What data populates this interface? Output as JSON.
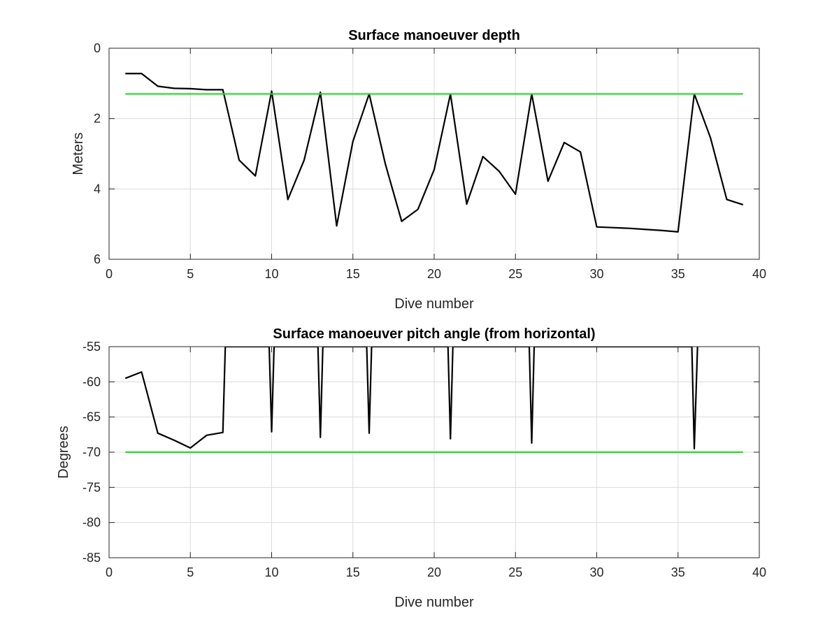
{
  "chart_data": [
    {
      "type": "line",
      "title": "Surface manoeuver depth",
      "xlabel": "Dive number",
      "ylabel": "Meters",
      "xlim": [
        0,
        40
      ],
      "ylim": [
        0,
        6
      ],
      "y_reversed": true,
      "grid": true,
      "xticks": [
        "0",
        "5",
        "10",
        "15",
        "20",
        "25",
        "30",
        "35",
        "40"
      ],
      "yticks": [
        "0",
        "2",
        "4",
        "6"
      ],
      "series": [
        {
          "color": "#000000",
          "x": [
            1,
            2,
            3,
            4,
            5,
            6,
            7,
            8,
            9,
            10,
            11,
            12,
            13,
            14,
            15,
            16,
            17,
            18,
            19,
            20,
            21,
            22,
            23,
            24,
            25,
            26,
            27,
            28,
            29,
            30,
            31,
            32,
            33,
            34,
            35,
            36,
            37,
            38,
            39
          ],
          "y": [
            0.72,
            0.72,
            1.08,
            1.14,
            1.15,
            1.18,
            1.18,
            3.18,
            3.63,
            1.22,
            4.3,
            3.18,
            1.25,
            5.05,
            2.65,
            1.3,
            3.3,
            4.92,
            4.58,
            3.45,
            1.3,
            4.43,
            3.08,
            3.5,
            4.15,
            1.3,
            3.78,
            2.68,
            2.95,
            5.08,
            5.1,
            5.12,
            5.15,
            5.18,
            5.22,
            1.3,
            2.55,
            4.3,
            4.45
          ]
        },
        {
          "color": "#22dd22",
          "x": [
            1,
            39
          ],
          "y": [
            1.3,
            1.3
          ]
        }
      ]
    },
    {
      "type": "line",
      "title": "Surface manoeuver pitch angle (from horizontal)",
      "xlabel": "Dive number",
      "ylabel": "Degrees",
      "xlim": [
        0,
        40
      ],
      "ylim": [
        -85,
        -55
      ],
      "grid": true,
      "xticks": [
        "0",
        "5",
        "10",
        "15",
        "20",
        "25",
        "30",
        "35",
        "40"
      ],
      "yticks": [
        "-55",
        "-60",
        "-65",
        "-70",
        "-75",
        "-80",
        "-85"
      ],
      "series": [
        {
          "color": "#000000",
          "x": [
            1,
            2,
            3,
            4,
            5,
            6,
            7,
            7.15,
            9.85,
            10,
            10.15,
            12.85,
            13,
            13.15,
            15.85,
            16,
            16.15,
            20.85,
            21,
            21.15,
            25.85,
            26,
            26.15,
            35.85,
            36,
            36.2
          ],
          "y": [
            -59.5,
            -58.6,
            -67.3,
            -68.3,
            -69.4,
            -67.6,
            -67.2,
            -55,
            -55,
            -67.1,
            -55,
            -55,
            -67.9,
            -55,
            -55,
            -67.3,
            -55,
            -55,
            -68.1,
            -55,
            -55,
            -68.7,
            -55,
            -55,
            -69.5,
            -55
          ]
        },
        {
          "color": "#22dd22",
          "x": [
            1,
            39
          ],
          "y": [
            -70,
            -70
          ]
        }
      ]
    }
  ]
}
